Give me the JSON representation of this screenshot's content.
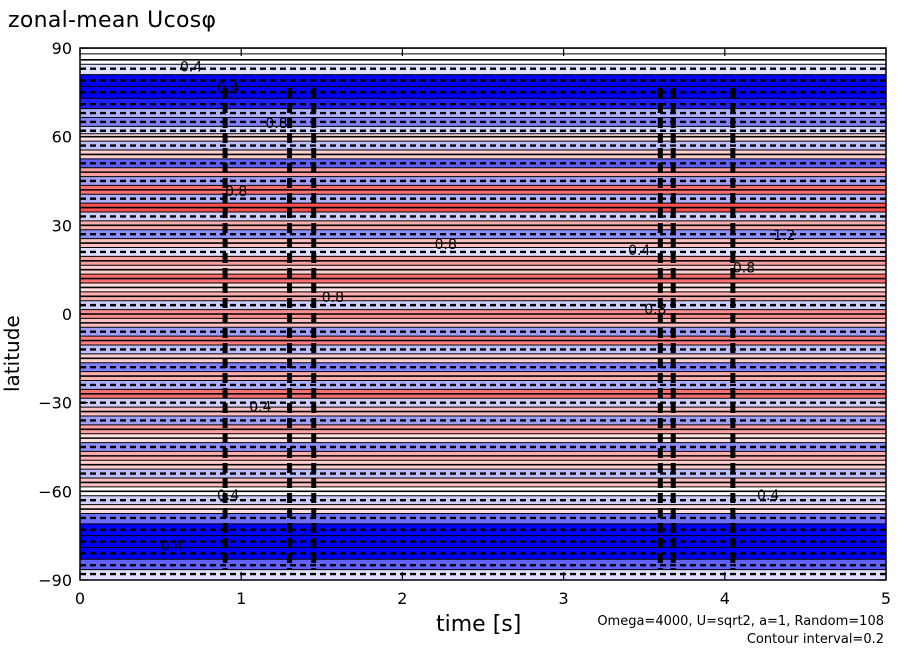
{
  "figure": {
    "title": "zonal-mean Ucosφ",
    "xlabel": "time [s]",
    "ylabel": "latitude",
    "note_params": "Omega=4000, U=sqrt2, a=1, Random=108",
    "note_interval": "Contour interval=0.2"
  },
  "chart_data": {
    "type": "heatmap",
    "title": "zonal-mean Ucosφ",
    "xlabel": "time [s]",
    "ylabel": "latitude",
    "xlim": [
      0,
      5
    ],
    "ylim": [
      -90,
      90
    ],
    "x_ticks": [
      0,
      1,
      2,
      3,
      4,
      5
    ],
    "y_ticks": [
      -90,
      -60,
      -30,
      0,
      30,
      60,
      90
    ],
    "x_tick_labels": [
      "0",
      "1",
      "2",
      "3",
      "4",
      "5"
    ],
    "y_tick_labels": [
      "−90",
      "−60",
      "−30",
      "0",
      "30",
      "60",
      "90"
    ],
    "contour_interval": 0.2,
    "colors": {
      "positive": "#ff0000",
      "negative": "#0000ff",
      "zero": "#ffffff",
      "contour": "#000000"
    },
    "contour_labels": [
      {
        "t": 0.5,
        "lat": -80,
        "text": "0.4"
      },
      {
        "t": 0.85,
        "lat": -63,
        "text": "0.4"
      },
      {
        "t": 0.62,
        "lat": 82,
        "text": "0.4"
      },
      {
        "t": 0.85,
        "lat": 75,
        "text": "0.4"
      },
      {
        "t": 1.15,
        "lat": 63,
        "text": "0.8"
      },
      {
        "t": 1.5,
        "lat": 4,
        "text": "0.8"
      },
      {
        "t": 2.2,
        "lat": 22,
        "text": "0.8"
      },
      {
        "t": 3.4,
        "lat": 20,
        "text": "0.4"
      },
      {
        "t": 4.05,
        "lat": 14,
        "text": "0.8"
      },
      {
        "t": 4.3,
        "lat": 25,
        "text": "1.2"
      },
      {
        "t": 3.5,
        "lat": 0,
        "text": "0.8"
      },
      {
        "t": 1.05,
        "lat": -33,
        "text": "0.4"
      },
      {
        "t": 4.2,
        "lat": -63,
        "text": "0.4"
      },
      {
        "t": 0.9,
        "lat": 40,
        "text": "0.8"
      }
    ],
    "bands": [
      {
        "lat": 90,
        "v": 0.0
      },
      {
        "lat": 86,
        "v": 0.1
      },
      {
        "lat": 83,
        "v": -0.2
      },
      {
        "lat": 79,
        "v": -1.9
      },
      {
        "lat": 75,
        "v": -1.9
      },
      {
        "lat": 71,
        "v": -1.4
      },
      {
        "lat": 68,
        "v": -0.5
      },
      {
        "lat": 65,
        "v": -0.8
      },
      {
        "lat": 62,
        "v": -0.3
      },
      {
        "lat": 60,
        "v": 0.2
      },
      {
        "lat": 57,
        "v": -0.4
      },
      {
        "lat": 54,
        "v": 0.3
      },
      {
        "lat": 51,
        "v": -1.0
      },
      {
        "lat": 48,
        "v": 0.6
      },
      {
        "lat": 45,
        "v": -0.6
      },
      {
        "lat": 42,
        "v": 0.9
      },
      {
        "lat": 39,
        "v": -0.5
      },
      {
        "lat": 36,
        "v": 1.1
      },
      {
        "lat": 33,
        "v": -0.3
      },
      {
        "lat": 30,
        "v": 0.5
      },
      {
        "lat": 27,
        "v": -0.7
      },
      {
        "lat": 24,
        "v": 0.4
      },
      {
        "lat": 21,
        "v": -0.2
      },
      {
        "lat": 18,
        "v": 0.6
      },
      {
        "lat": 15,
        "v": 0.3
      },
      {
        "lat": 12,
        "v": 0.9
      },
      {
        "lat": 9,
        "v": 0.2
      },
      {
        "lat": 6,
        "v": 0.5
      },
      {
        "lat": 3,
        "v": -0.3
      },
      {
        "lat": 0,
        "v": 0.7
      },
      {
        "lat": -3,
        "v": 0.4
      },
      {
        "lat": -6,
        "v": -0.6
      },
      {
        "lat": -9,
        "v": 0.8
      },
      {
        "lat": -12,
        "v": -0.4
      },
      {
        "lat": -15,
        "v": 0.3
      },
      {
        "lat": -18,
        "v": -0.8
      },
      {
        "lat": -21,
        "v": 0.5
      },
      {
        "lat": -24,
        "v": -0.5
      },
      {
        "lat": -27,
        "v": 0.9
      },
      {
        "lat": -30,
        "v": -0.3
      },
      {
        "lat": -33,
        "v": 0.4
      },
      {
        "lat": -36,
        "v": -0.6
      },
      {
        "lat": -39,
        "v": 0.6
      },
      {
        "lat": -42,
        "v": 0.2
      },
      {
        "lat": -45,
        "v": -0.7
      },
      {
        "lat": -48,
        "v": 0.5
      },
      {
        "lat": -51,
        "v": 0.3
      },
      {
        "lat": -54,
        "v": -0.4
      },
      {
        "lat": -57,
        "v": 0.4
      },
      {
        "lat": -60,
        "v": 0.1
      },
      {
        "lat": -63,
        "v": -0.3
      },
      {
        "lat": -66,
        "v": 0.2
      },
      {
        "lat": -69,
        "v": -0.9
      },
      {
        "lat": -73,
        "v": -1.9
      },
      {
        "lat": -77,
        "v": -1.9
      },
      {
        "lat": -81,
        "v": -1.6
      },
      {
        "lat": -85,
        "v": -1.0
      },
      {
        "lat": -88,
        "v": -0.2
      }
    ]
  }
}
